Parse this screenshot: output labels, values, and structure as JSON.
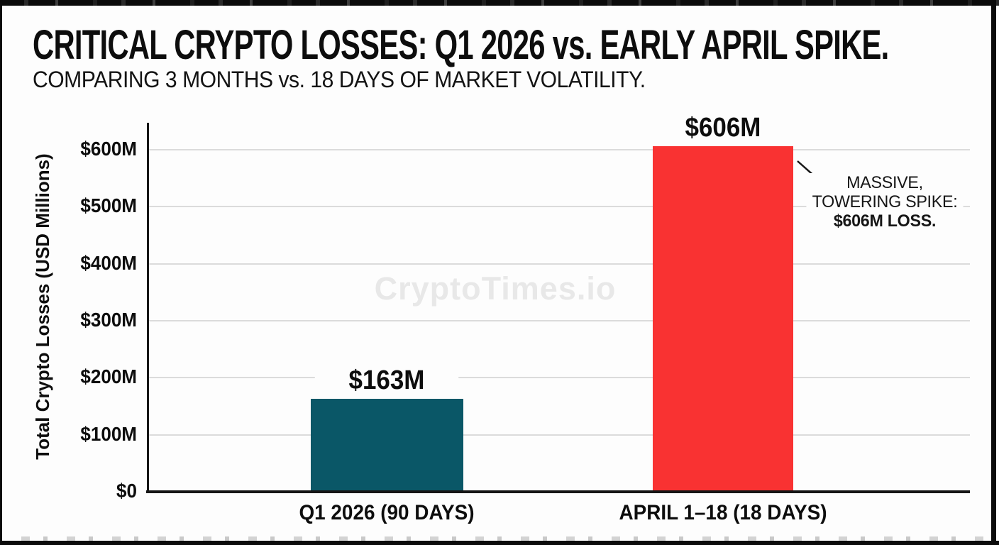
{
  "header": {
    "title": "CRITICAL CRYPTO LOSSES: Q1 2026 vs. EARLY APRIL SPIKE.",
    "subtitle": "COMPARING 3 MONTHS vs. 18 DAYS OF MARKET VOLATILITY."
  },
  "watermark": "CryptoTimes.io",
  "chart_data": {
    "type": "bar",
    "title": "CRITICAL CRYPTO LOSSES: Q1 2026 vs. EARLY APRIL SPIKE.",
    "subtitle": "COMPARING 3 MONTHS vs. 18 DAYS OF MARKET VOLATILITY.",
    "categories": [
      "Q1 2026 (90 DAYS)",
      "APRIL 1–18 (18 DAYS)"
    ],
    "values": [
      163,
      606
    ],
    "bar_labels": [
      "$163M",
      "$606M"
    ],
    "bar_colors": [
      "#0a5767",
      "#f93232"
    ],
    "xlabel": "",
    "ylabel": "Total Crypto Losses (USD Millions)",
    "ylim": [
      0,
      645
    ],
    "yticks": [
      0,
      100,
      200,
      300,
      400,
      500,
      600
    ],
    "ytick_labels": [
      "$0",
      "$100M",
      "$200M",
      "$300M",
      "$400M",
      "$500M",
      "$600M"
    ],
    "grid": true,
    "legend": "none",
    "annotation": {
      "line1": "MASSIVE,",
      "line2": "TOWERING SPIKE:",
      "line3": "$606M LOSS.",
      "target": "APRIL 1–18 bar"
    }
  }
}
